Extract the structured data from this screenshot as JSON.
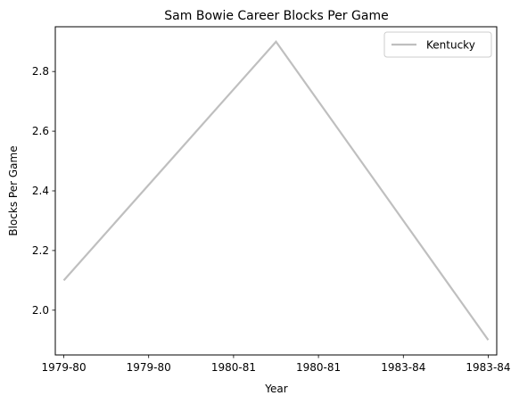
{
  "chart_data": {
    "type": "line",
    "title": "Sam Bowie Career Blocks Per Game",
    "xlabel": "Year",
    "ylabel": "Blocks Per Game",
    "x_tick_labels": [
      "1979-80",
      "1979-80",
      "1980-81",
      "1980-81",
      "1983-84",
      "1983-84"
    ],
    "x_range": [
      -0.1,
      5.1
    ],
    "series": [
      {
        "name": "Kentucky",
        "color": "#bfbfbf",
        "x": [
          0,
          2.5,
          5
        ],
        "values": [
          2.1,
          2.9,
          1.9
        ]
      }
    ],
    "yticks": [
      2.0,
      2.2,
      2.4,
      2.6,
      2.8
    ],
    "ylim": [
      1.85,
      2.95
    ],
    "grid": false,
    "legend_position": "top-right"
  }
}
